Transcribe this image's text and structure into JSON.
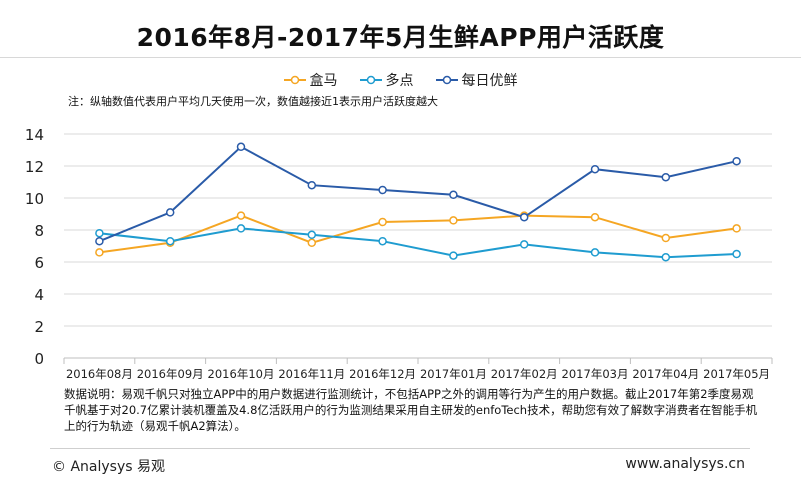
{
  "chart_data": {
    "type": "line",
    "title": "2016年8月-2017年5月生鲜APP用户活跃度",
    "note": "注：纵轴数值代表用户平均几天使用一次，数值越接近1表示用户活跃度越大",
    "categories": [
      "2016年08月",
      "2016年09月",
      "2016年10月",
      "2016年11月",
      "2016年12月",
      "2017年01月",
      "2017年02月",
      "2017年03月",
      "2017年04月",
      "2017年05月"
    ],
    "series": [
      {
        "name": "盒马",
        "color": "#f5a623",
        "values": [
          6.6,
          7.2,
          8.9,
          7.2,
          8.5,
          8.6,
          8.9,
          8.8,
          7.5,
          8.1
        ]
      },
      {
        "name": "多点",
        "color": "#1f9cd0",
        "values": [
          7.8,
          7.3,
          8.1,
          7.7,
          7.3,
          6.4,
          7.1,
          6.6,
          6.3,
          6.5
        ]
      },
      {
        "name": "每日优鲜",
        "color": "#2a5ba8",
        "values": [
          7.3,
          9.1,
          13.2,
          10.8,
          10.5,
          10.2,
          8.8,
          11.8,
          11.3,
          12.3
        ]
      }
    ],
    "ylim": [
      0,
      14
    ],
    "yticks": [
      0,
      2,
      4,
      6,
      8,
      10,
      12,
      14
    ],
    "grid": true,
    "legend_position": "top-center",
    "xlabel": "",
    "ylabel": ""
  },
  "description": "数据说明：易观千帆只对独立APP中的用户数据进行监测统计，不包括APP之外的调用等行为产生的用户数据。截止2017年第2季度易观千帆基于对20.7亿累计装机覆盖及4.8亿活跃用户的行为监测结果采用自主研发的enfoTech技术，帮助您有效了解数字消费者在智能手机上的行为轨迹（易观千帆A2算法）。",
  "footer": {
    "copyright": "© Analysys 易观",
    "site": "www.analysys.cn"
  }
}
